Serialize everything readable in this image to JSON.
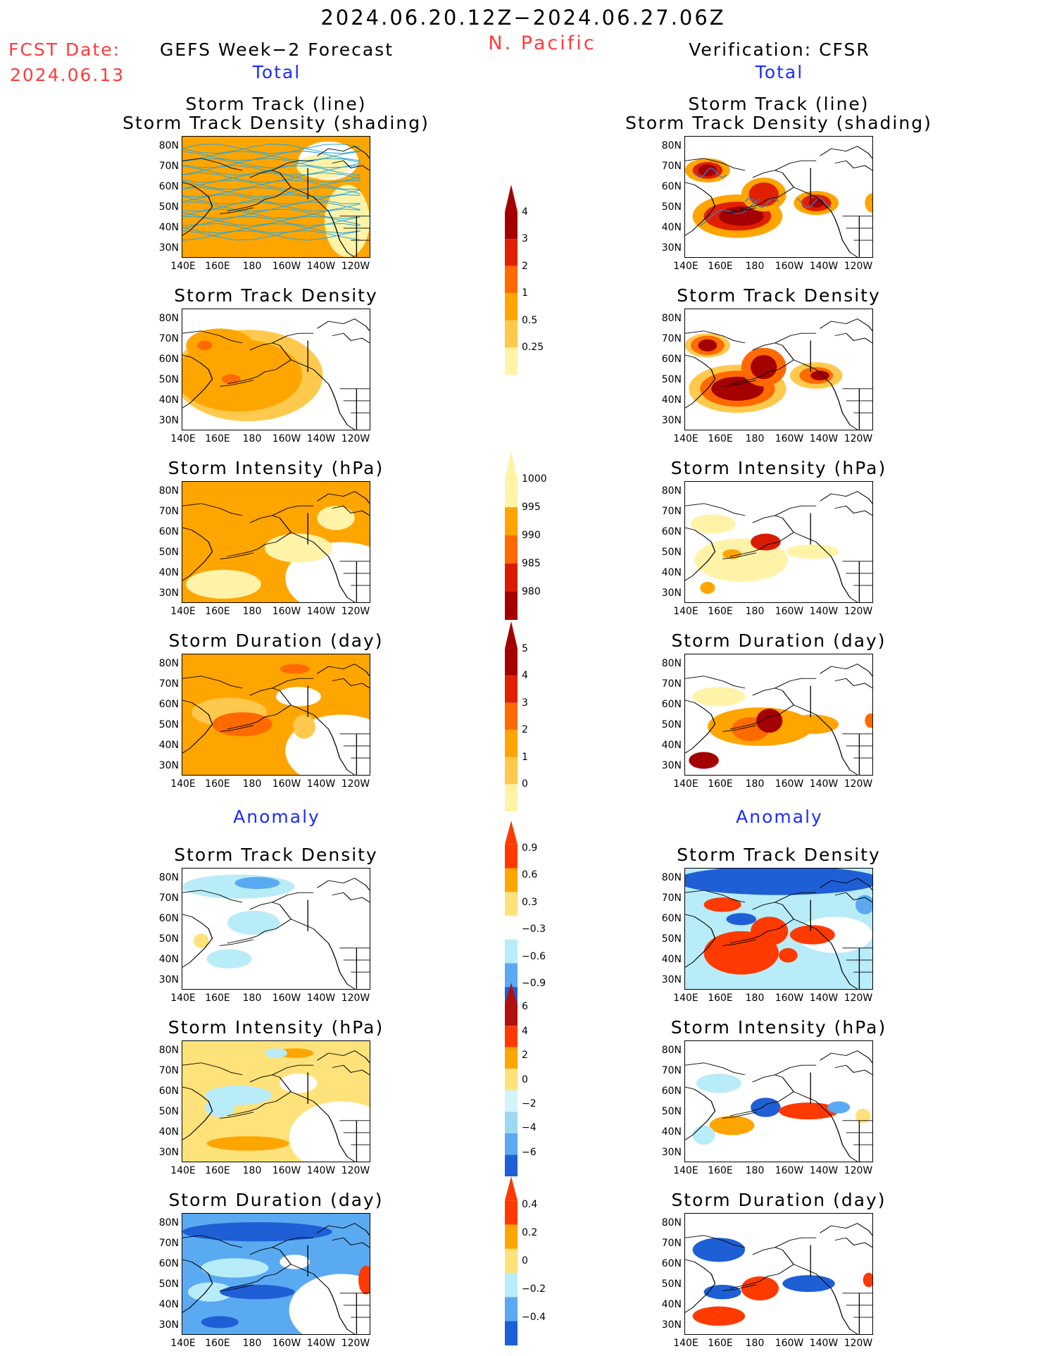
{
  "header": {
    "date_range": "2024.06.20.12Z−2024.06.27.06Z",
    "region": "N. Pacific",
    "fcst_label": "FCST Date:",
    "fcst_date": "2024.06.13",
    "left_title": "GEFS Week−2 Forecast",
    "right_title": "Verification: CFSR",
    "total_left": "Total",
    "total_right": "Total",
    "anomaly_left": "Anomaly",
    "anomaly_right": "Anomaly"
  },
  "axes": {
    "x_ticks": [
      "140E",
      "160E",
      "180",
      "160W",
      "140W",
      "120W"
    ],
    "y_ticks": [
      "80N",
      "70N",
      "60N",
      "50N",
      "40N",
      "30N"
    ]
  },
  "panel_titles": {
    "track_line": "Storm Track (line)",
    "track_shading": "Storm Track Density (shading)",
    "density": "Storm Track Density",
    "intensity": "Storm Intensity (hPa)",
    "duration": "Storm Duration (day)"
  },
  "colorbars": [
    {
      "name": "density",
      "ticks": [
        "4",
        "3",
        "2",
        "1",
        "0.5",
        "0.25"
      ],
      "colors": [
        "#a50000",
        "#e02000",
        "#ff6a00",
        "#ffa500",
        "#ffc94d",
        "#fff3a8"
      ]
    },
    {
      "name": "intensity",
      "ticks": [
        "1000",
        "995",
        "990",
        "985",
        "980"
      ],
      "colors": [
        "#fff3a8",
        "#ffa500",
        "#ff6a00",
        "#d91c00",
        "#a50000"
      ]
    },
    {
      "name": "duration",
      "ticks": [
        "5",
        "4",
        "3",
        "2",
        "1",
        "0"
      ],
      "colors": [
        "#a50000",
        "#e02000",
        "#ff6a00",
        "#ffa500",
        "#ffc94d",
        "#fff3a8"
      ]
    },
    {
      "name": "density_anomaly",
      "ticks": [
        "0.9",
        "0.6",
        "0.3",
        "−0.3",
        "−0.6",
        "−0.9"
      ],
      "colors": [
        "#ff3a00",
        "#ffa500",
        "#ffe27a",
        "#ffffff",
        "#b8ecf8",
        "#5aaaf2",
        "#1f5fd6"
      ]
    },
    {
      "name": "intensity_anomaly",
      "ticks": [
        "6",
        "4",
        "2",
        "0",
        "−2",
        "−4",
        "−6"
      ],
      "colors": [
        "#b01010",
        "#ff3a00",
        "#ffa500",
        "#ffe27a",
        "#d3f2fb",
        "#9dd8f2",
        "#5aaaf2",
        "#1f5fd6"
      ]
    },
    {
      "name": "duration_anomaly",
      "ticks": [
        "0.4",
        "0.2",
        "0",
        "−0.2",
        "−0.4"
      ],
      "colors": [
        "#ff3a00",
        "#ffa500",
        "#ffe27a",
        "#b8ecf8",
        "#5aaaf2",
        "#1f5fd6"
      ]
    }
  ],
  "chart_data": [
    {
      "type": "heatmap",
      "panel": "GEFS Week-2 Forecast total storm track (line) and density (shading)",
      "xlabel": "",
      "ylabel": "",
      "xlim": [
        140,
        240
      ],
      "ylim": [
        25,
        85
      ],
      "grid": false
    },
    {
      "type": "heatmap",
      "panel": "CFSR total storm track (line) and density (shading)",
      "xlim": [
        140,
        240
      ],
      "ylim": [
        25,
        85
      ],
      "grid": false
    },
    {
      "type": "heatmap",
      "panel": "GEFS total storm track density",
      "xlim": [
        140,
        240
      ],
      "ylim": [
        25,
        85
      ]
    },
    {
      "type": "heatmap",
      "panel": "CFSR total storm track density",
      "xlim": [
        140,
        240
      ],
      "ylim": [
        25,
        85
      ]
    },
    {
      "type": "heatmap",
      "panel": "GEFS total storm intensity (hPa)",
      "xlim": [
        140,
        240
      ],
      "ylim": [
        25,
        85
      ]
    },
    {
      "type": "heatmap",
      "panel": "CFSR total storm intensity (hPa)",
      "xlim": [
        140,
        240
      ],
      "ylim": [
        25,
        85
      ]
    },
    {
      "type": "heatmap",
      "panel": "GEFS total storm duration (day)",
      "xlim": [
        140,
        240
      ],
      "ylim": [
        25,
        85
      ]
    },
    {
      "type": "heatmap",
      "panel": "CFSR total storm duration (day)",
      "xlim": [
        140,
        240
      ],
      "ylim": [
        25,
        85
      ]
    },
    {
      "type": "heatmap",
      "panel": "GEFS anomaly storm track density",
      "xlim": [
        140,
        240
      ],
      "ylim": [
        25,
        85
      ]
    },
    {
      "type": "heatmap",
      "panel": "CFSR anomaly storm track density",
      "xlim": [
        140,
        240
      ],
      "ylim": [
        25,
        85
      ]
    },
    {
      "type": "heatmap",
      "panel": "GEFS anomaly storm intensity (hPa)",
      "xlim": [
        140,
        240
      ],
      "ylim": [
        25,
        85
      ]
    },
    {
      "type": "heatmap",
      "panel": "CFSR anomaly storm intensity (hPa)",
      "xlim": [
        140,
        240
      ],
      "ylim": [
        25,
        85
      ]
    },
    {
      "type": "heatmap",
      "panel": "GEFS anomaly storm duration (day)",
      "xlim": [
        140,
        240
      ],
      "ylim": [
        25,
        85
      ]
    },
    {
      "type": "heatmap",
      "panel": "CFSR anomaly storm duration (day)",
      "xlim": [
        140,
        240
      ],
      "ylim": [
        25,
        85
      ]
    }
  ]
}
